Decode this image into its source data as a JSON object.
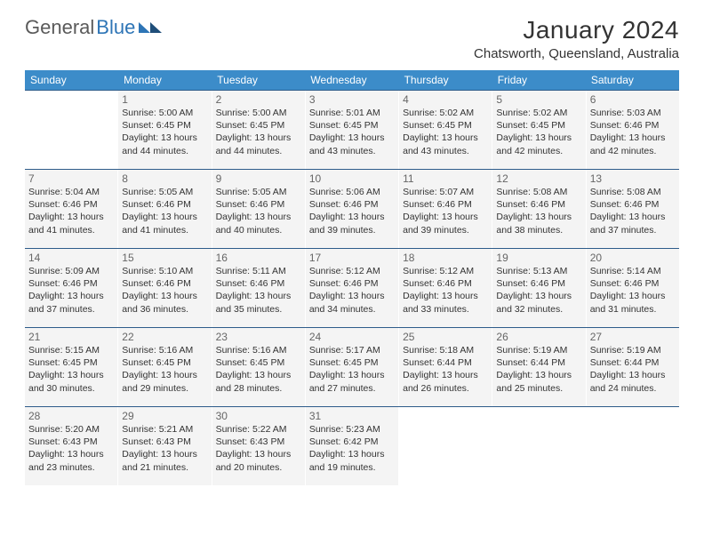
{
  "logo": {
    "part1": "General",
    "part2": "Blue"
  },
  "header": {
    "month_title": "January 2024",
    "location": "Chatsworth, Queensland, Australia"
  },
  "colors": {
    "header_bg": "#3c8cc9",
    "header_text": "#ffffff",
    "row_border": "#2e5c8a",
    "cell_bg": "#f4f4f4",
    "blank_bg": "#ffffff",
    "logo_blue": "#2e75b6",
    "text": "#333333",
    "daynum": "#666666"
  },
  "weekdays": [
    "Sunday",
    "Monday",
    "Tuesday",
    "Wednesday",
    "Thursday",
    "Friday",
    "Saturday"
  ],
  "weeks": [
    [
      {
        "blank": true
      },
      {
        "num": "1",
        "l1": "Sunrise: 5:00 AM",
        "l2": "Sunset: 6:45 PM",
        "l3": "Daylight: 13 hours",
        "l4": "and 44 minutes."
      },
      {
        "num": "2",
        "l1": "Sunrise: 5:00 AM",
        "l2": "Sunset: 6:45 PM",
        "l3": "Daylight: 13 hours",
        "l4": "and 44 minutes."
      },
      {
        "num": "3",
        "l1": "Sunrise: 5:01 AM",
        "l2": "Sunset: 6:45 PM",
        "l3": "Daylight: 13 hours",
        "l4": "and 43 minutes."
      },
      {
        "num": "4",
        "l1": "Sunrise: 5:02 AM",
        "l2": "Sunset: 6:45 PM",
        "l3": "Daylight: 13 hours",
        "l4": "and 43 minutes."
      },
      {
        "num": "5",
        "l1": "Sunrise: 5:02 AM",
        "l2": "Sunset: 6:45 PM",
        "l3": "Daylight: 13 hours",
        "l4": "and 42 minutes."
      },
      {
        "num": "6",
        "l1": "Sunrise: 5:03 AM",
        "l2": "Sunset: 6:46 PM",
        "l3": "Daylight: 13 hours",
        "l4": "and 42 minutes."
      }
    ],
    [
      {
        "num": "7",
        "l1": "Sunrise: 5:04 AM",
        "l2": "Sunset: 6:46 PM",
        "l3": "Daylight: 13 hours",
        "l4": "and 41 minutes."
      },
      {
        "num": "8",
        "l1": "Sunrise: 5:05 AM",
        "l2": "Sunset: 6:46 PM",
        "l3": "Daylight: 13 hours",
        "l4": "and 41 minutes."
      },
      {
        "num": "9",
        "l1": "Sunrise: 5:05 AM",
        "l2": "Sunset: 6:46 PM",
        "l3": "Daylight: 13 hours",
        "l4": "and 40 minutes."
      },
      {
        "num": "10",
        "l1": "Sunrise: 5:06 AM",
        "l2": "Sunset: 6:46 PM",
        "l3": "Daylight: 13 hours",
        "l4": "and 39 minutes."
      },
      {
        "num": "11",
        "l1": "Sunrise: 5:07 AM",
        "l2": "Sunset: 6:46 PM",
        "l3": "Daylight: 13 hours",
        "l4": "and 39 minutes."
      },
      {
        "num": "12",
        "l1": "Sunrise: 5:08 AM",
        "l2": "Sunset: 6:46 PM",
        "l3": "Daylight: 13 hours",
        "l4": "and 38 minutes."
      },
      {
        "num": "13",
        "l1": "Sunrise: 5:08 AM",
        "l2": "Sunset: 6:46 PM",
        "l3": "Daylight: 13 hours",
        "l4": "and 37 minutes."
      }
    ],
    [
      {
        "num": "14",
        "l1": "Sunrise: 5:09 AM",
        "l2": "Sunset: 6:46 PM",
        "l3": "Daylight: 13 hours",
        "l4": "and 37 minutes."
      },
      {
        "num": "15",
        "l1": "Sunrise: 5:10 AM",
        "l2": "Sunset: 6:46 PM",
        "l3": "Daylight: 13 hours",
        "l4": "and 36 minutes."
      },
      {
        "num": "16",
        "l1": "Sunrise: 5:11 AM",
        "l2": "Sunset: 6:46 PM",
        "l3": "Daylight: 13 hours",
        "l4": "and 35 minutes."
      },
      {
        "num": "17",
        "l1": "Sunrise: 5:12 AM",
        "l2": "Sunset: 6:46 PM",
        "l3": "Daylight: 13 hours",
        "l4": "and 34 minutes."
      },
      {
        "num": "18",
        "l1": "Sunrise: 5:12 AM",
        "l2": "Sunset: 6:46 PM",
        "l3": "Daylight: 13 hours",
        "l4": "and 33 minutes."
      },
      {
        "num": "19",
        "l1": "Sunrise: 5:13 AM",
        "l2": "Sunset: 6:46 PM",
        "l3": "Daylight: 13 hours",
        "l4": "and 32 minutes."
      },
      {
        "num": "20",
        "l1": "Sunrise: 5:14 AM",
        "l2": "Sunset: 6:46 PM",
        "l3": "Daylight: 13 hours",
        "l4": "and 31 minutes."
      }
    ],
    [
      {
        "num": "21",
        "l1": "Sunrise: 5:15 AM",
        "l2": "Sunset: 6:45 PM",
        "l3": "Daylight: 13 hours",
        "l4": "and 30 minutes."
      },
      {
        "num": "22",
        "l1": "Sunrise: 5:16 AM",
        "l2": "Sunset: 6:45 PM",
        "l3": "Daylight: 13 hours",
        "l4": "and 29 minutes."
      },
      {
        "num": "23",
        "l1": "Sunrise: 5:16 AM",
        "l2": "Sunset: 6:45 PM",
        "l3": "Daylight: 13 hours",
        "l4": "and 28 minutes."
      },
      {
        "num": "24",
        "l1": "Sunrise: 5:17 AM",
        "l2": "Sunset: 6:45 PM",
        "l3": "Daylight: 13 hours",
        "l4": "and 27 minutes."
      },
      {
        "num": "25",
        "l1": "Sunrise: 5:18 AM",
        "l2": "Sunset: 6:44 PM",
        "l3": "Daylight: 13 hours",
        "l4": "and 26 minutes."
      },
      {
        "num": "26",
        "l1": "Sunrise: 5:19 AM",
        "l2": "Sunset: 6:44 PM",
        "l3": "Daylight: 13 hours",
        "l4": "and 25 minutes."
      },
      {
        "num": "27",
        "l1": "Sunrise: 5:19 AM",
        "l2": "Sunset: 6:44 PM",
        "l3": "Daylight: 13 hours",
        "l4": "and 24 minutes."
      }
    ],
    [
      {
        "num": "28",
        "l1": "Sunrise: 5:20 AM",
        "l2": "Sunset: 6:43 PM",
        "l3": "Daylight: 13 hours",
        "l4": "and 23 minutes."
      },
      {
        "num": "29",
        "l1": "Sunrise: 5:21 AM",
        "l2": "Sunset: 6:43 PM",
        "l3": "Daylight: 13 hours",
        "l4": "and 21 minutes."
      },
      {
        "num": "30",
        "l1": "Sunrise: 5:22 AM",
        "l2": "Sunset: 6:43 PM",
        "l3": "Daylight: 13 hours",
        "l4": "and 20 minutes."
      },
      {
        "num": "31",
        "l1": "Sunrise: 5:23 AM",
        "l2": "Sunset: 6:42 PM",
        "l3": "Daylight: 13 hours",
        "l4": "and 19 minutes."
      },
      {
        "blank": true
      },
      {
        "blank": true
      },
      {
        "blank": true
      }
    ]
  ]
}
